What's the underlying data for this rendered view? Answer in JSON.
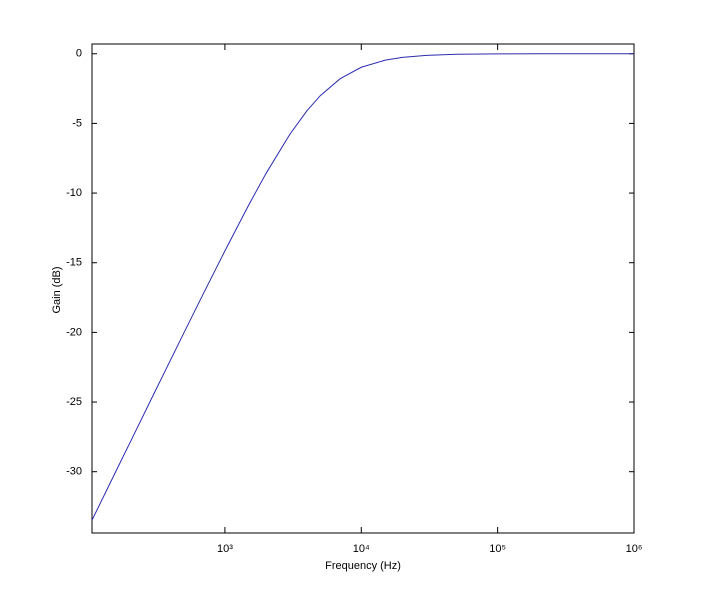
{
  "chart_data": {
    "type": "line",
    "x_label": "Frequency (Hz)",
    "y_label": "Gain (dB)",
    "x": [
      106,
      150,
      200,
      300,
      500,
      700,
      1000,
      1500,
      2000,
      3000,
      4000,
      5000,
      7000,
      10000,
      15000,
      20000,
      30000,
      50000,
      100000,
      200000,
      500000,
      1000000
    ],
    "series": [
      {
        "color": "#2b2bb0",
        "values": [
          -33.48,
          -30.46,
          -27.97,
          -24.45,
          -20.04,
          -17.16,
          -14.15,
          -10.83,
          -8.6,
          -5.77,
          -4.09,
          -3.01,
          -1.79,
          -0.97,
          -0.46,
          -0.26,
          -0.12,
          -0.04,
          -0.01,
          -0.003,
          0,
          0
        ]
      }
    ],
    "x_scale": "log",
    "xlim": [
      106,
      1000000
    ],
    "xticks": [
      {
        "value": 1000,
        "label": "10³"
      },
      {
        "value": 10000,
        "label": "10⁴"
      },
      {
        "value": 100000,
        "label": "10⁵"
      },
      {
        "value": 1000000,
        "label": "10⁶"
      }
    ],
    "ylim": [
      -34.4,
      0.7
    ],
    "yticks": [
      0,
      -5,
      -10,
      -15,
      -20,
      -25,
      -30
    ]
  }
}
